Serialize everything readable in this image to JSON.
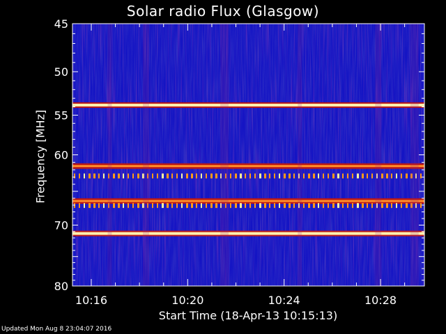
{
  "chart_data": {
    "type": "heatmap",
    "title": "Solar radio Flux (Glasgow)",
    "xlabel": "Start Time (18-Apr-13 10:15:13)",
    "ylabel": "Frequency [MHz]",
    "x_ticks": [
      "10:16",
      "10:20",
      "10:24",
      "10:28"
    ],
    "x_tick_minutes": [
      0.78,
      4.78,
      8.78,
      12.78
    ],
    "x_range_minutes": [
      0,
      14.6
    ],
    "y_ticks": [
      45,
      50,
      55,
      60,
      70,
      80
    ],
    "ylim": [
      45,
      80
    ],
    "y_axis_inverted": true,
    "y_scale": "log",
    "background_color": "#1010c8",
    "emission_bands": [
      {
        "freq_mhz": 53.8,
        "intensity": "high"
      },
      {
        "freq_mhz": 61.5,
        "intensity": "medium"
      },
      {
        "freq_mhz": 62.8,
        "intensity": "dashed"
      },
      {
        "freq_mhz": 66.4,
        "intensity": "medium"
      },
      {
        "freq_mhz": 67.0,
        "intensity": "dashed"
      },
      {
        "freq_mhz": 71.3,
        "intensity": "high"
      }
    ]
  },
  "footer": {
    "updated": "Updated Mon Aug  8 23:04:07 2016"
  }
}
